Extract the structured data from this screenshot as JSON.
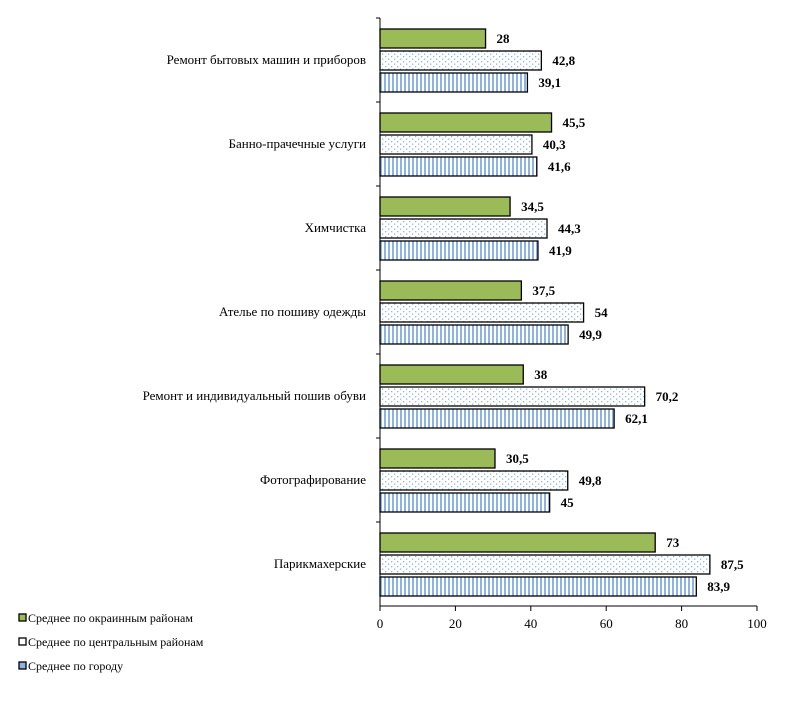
{
  "chart_data": {
    "type": "bar",
    "orientation": "horizontal",
    "categories": [
      "Ремонт бытовых машин и приборов",
      "Банно-прачечные услуги",
      "Химчистка",
      "Ателье по пошиву одежды",
      "Ремонт и индивидуальный пошив обуви",
      "Фотографирование",
      "Парикмахерские"
    ],
    "series": [
      {
        "name": "Среднее по окраинным районам",
        "values": [
          28,
          45.5,
          34.5,
          37.5,
          38,
          30.5,
          73
        ],
        "labels": [
          "28",
          "45,5",
          "34,5",
          "37,5",
          "38",
          "30,5",
          "73"
        ],
        "color": "#9bbb59",
        "pattern": "solid"
      },
      {
        "name": "Среднее по центральным районам",
        "values": [
          42.8,
          40.3,
          44.3,
          54,
          70.2,
          49.8,
          87.5
        ],
        "labels": [
          "42,8",
          "40,3",
          "44,3",
          "54",
          "70,2",
          "49,8",
          "87,5"
        ],
        "color": "#ffffff",
        "pattern": "dots"
      },
      {
        "name": "Среднее по городу",
        "values": [
          39.1,
          41.6,
          41.9,
          49.9,
          62.1,
          45,
          83.9
        ],
        "labels": [
          "39,1",
          "41,6",
          "41,9",
          "49,9",
          "62,1",
          "45",
          "83,9"
        ],
        "color": "#8db3e2",
        "pattern": "vertical-lines"
      }
    ],
    "xlim": [
      0,
      100
    ],
    "xticks": [
      "0",
      "20",
      "40",
      "60",
      "80",
      "100"
    ],
    "legend": "bottom-left",
    "grid": false
  }
}
